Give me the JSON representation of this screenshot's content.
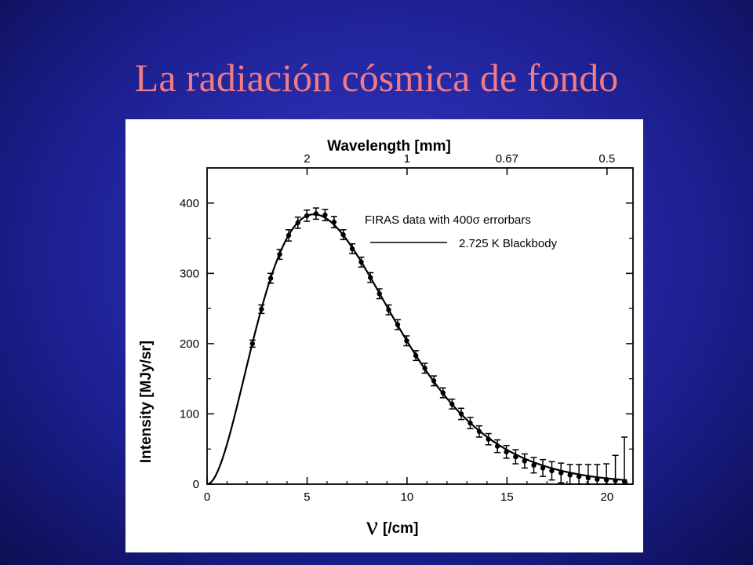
{
  "slide": {
    "title": "La radiación cósmica de fondo"
  },
  "chart_data": {
    "type": "line",
    "xlabel_symbol": "ν",
    "xlabel_unit": "[/cm]",
    "ylabel": "Intensity [MJy/sr]",
    "top_axis_label": "Wavelength [mm]",
    "xlim": [
      0,
      21.3
    ],
    "ylim": [
      0,
      450
    ],
    "x_ticks": [
      0,
      5,
      10,
      15,
      20
    ],
    "y_ticks": [
      0,
      100,
      200,
      300,
      400
    ],
    "top_ticks": [
      {
        "label": "2",
        "nu": 5
      },
      {
        "label": "1",
        "nu": 10
      },
      {
        "label": "0.67",
        "nu": 15
      },
      {
        "label": "0.5",
        "nu": 20
      }
    ],
    "grid": false,
    "legend_position": "top-right",
    "series": [
      {
        "name": "FIRAS data with 400σ errorbars",
        "kind": "errorbar",
        "x": [
          2.27,
          2.72,
          3.18,
          3.63,
          4.08,
          4.54,
          4.99,
          5.45,
          5.9,
          6.35,
          6.81,
          7.26,
          7.71,
          8.17,
          8.62,
          9.08,
          9.53,
          9.98,
          10.44,
          10.89,
          11.34,
          11.8,
          12.25,
          12.71,
          13.16,
          13.61,
          14.07,
          14.52,
          14.97,
          15.43,
          15.88,
          16.34,
          16.79,
          17.24,
          17.7,
          18.15,
          18.6,
          19.06,
          19.51,
          19.97,
          20.42,
          20.87
        ],
        "y": [
          200,
          249,
          293,
          327,
          354,
          372,
          382,
          385,
          383,
          373,
          355,
          335,
          316,
          294,
          271,
          248,
          227,
          204,
          183,
          165,
          147,
          130,
          114,
          100,
          87,
          75,
          64,
          54,
          46,
          39,
          33,
          27,
          23,
          19,
          16,
          13,
          11,
          9,
          7,
          6,
          5,
          4
        ],
        "yerr": [
          5,
          6,
          7,
          7,
          8,
          8,
          8,
          8,
          8,
          8,
          7,
          7,
          7,
          7,
          7,
          7,
          7,
          7,
          7,
          7,
          7,
          7,
          7,
          8,
          8,
          8,
          8,
          9,
          9,
          10,
          10,
          11,
          12,
          13,
          14,
          15,
          17,
          19,
          21,
          23,
          36,
          63
        ]
      },
      {
        "name": "2.725 K Blackbody",
        "kind": "line",
        "temperature_K": 2.725
      }
    ]
  }
}
